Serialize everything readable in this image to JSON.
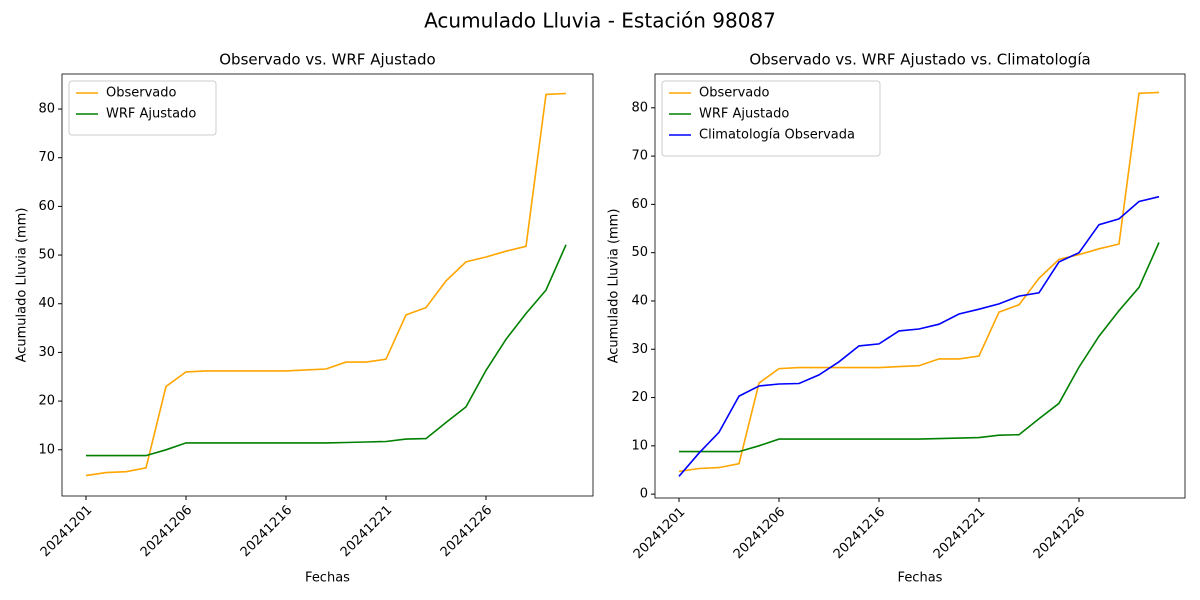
{
  "title": "Acumulado Lluvia - Estación 98087",
  "chart_data": [
    {
      "type": "line",
      "title": "Observado vs. WRF Ajustado",
      "xlabel": "Fechas",
      "ylabel": "Acumulado Lluvia (mm)",
      "categories": [
        "20241201",
        null,
        null,
        null,
        null,
        "20241206",
        null,
        null,
        null,
        null,
        "20241216",
        null,
        null,
        null,
        null,
        "20241221",
        null,
        null,
        null,
        null,
        "20241226",
        null,
        null,
        null,
        null
      ],
      "xlim": [
        -1.2,
        25.35
      ],
      "ylim": [
        0.5,
        87.2
      ],
      "yticks": [
        10,
        20,
        30,
        40,
        50,
        60,
        70,
        80
      ],
      "legend": "upper left",
      "series": [
        {
          "name": "Observado",
          "color": "#ffa500",
          "values": [
            4.7,
            5.3,
            5.5,
            6.3,
            23.0,
            26.0,
            26.2,
            26.2,
            26.2,
            26.2,
            26.2,
            26.4,
            26.6,
            28.0,
            28.0,
            28.6,
            37.7,
            39.2,
            44.7,
            48.6,
            49.6,
            50.8,
            51.8,
            83.0,
            83.2
          ]
        },
        {
          "name": "WRF Ajustado",
          "color": "#008000",
          "values": [
            8.8,
            8.8,
            8.8,
            8.8,
            10.0,
            11.4,
            11.4,
            11.4,
            11.4,
            11.4,
            11.4,
            11.4,
            11.4,
            11.5,
            11.6,
            11.7,
            12.2,
            12.3,
            15.6,
            18.8,
            26.3,
            32.7,
            38.0,
            42.8,
            52.1
          ]
        }
      ]
    },
    {
      "type": "line",
      "title": "Observado vs. WRF Ajustado vs. Climatología",
      "xlabel": "Fechas",
      "ylabel": "Acumulado Lluvia (mm)",
      "categories": [
        "20241201",
        null,
        null,
        null,
        null,
        "20241206",
        null,
        null,
        null,
        null,
        "20241216",
        null,
        null,
        null,
        null,
        "20241221",
        null,
        null,
        null,
        null,
        "20241226",
        null,
        null,
        null,
        null
      ],
      "xlim": [
        -1.2,
        25.3
      ],
      "ylim": [
        -0.8,
        87.0
      ],
      "yticks": [
        0,
        10,
        20,
        30,
        40,
        50,
        60,
        70,
        80
      ],
      "legend": "upper left",
      "series": [
        {
          "name": "Observado",
          "color": "#ffa500",
          "values": [
            4.7,
            5.3,
            5.5,
            6.3,
            23.0,
            26.0,
            26.2,
            26.2,
            26.2,
            26.2,
            26.2,
            26.4,
            26.6,
            28.0,
            28.0,
            28.6,
            37.7,
            39.2,
            44.7,
            48.6,
            49.6,
            50.8,
            51.8,
            83.0,
            83.2
          ]
        },
        {
          "name": "WRF Ajustado",
          "color": "#008000",
          "values": [
            8.8,
            8.8,
            8.8,
            8.8,
            10.0,
            11.4,
            11.4,
            11.4,
            11.4,
            11.4,
            11.4,
            11.4,
            11.4,
            11.5,
            11.6,
            11.7,
            12.2,
            12.3,
            15.6,
            18.8,
            26.3,
            32.7,
            38.0,
            42.8,
            52.1
          ]
        },
        {
          "name": "Climatología Observada",
          "color": "#0000ff",
          "values": [
            3.7,
            8.5,
            12.8,
            20.3,
            22.4,
            22.8,
            22.9,
            24.7,
            27.4,
            30.7,
            31.1,
            33.8,
            34.2,
            35.2,
            37.3,
            38.3,
            39.4,
            41.0,
            41.7,
            48.1,
            50.0,
            55.8,
            57.0,
            60.6,
            61.6
          ]
        }
      ]
    }
  ]
}
